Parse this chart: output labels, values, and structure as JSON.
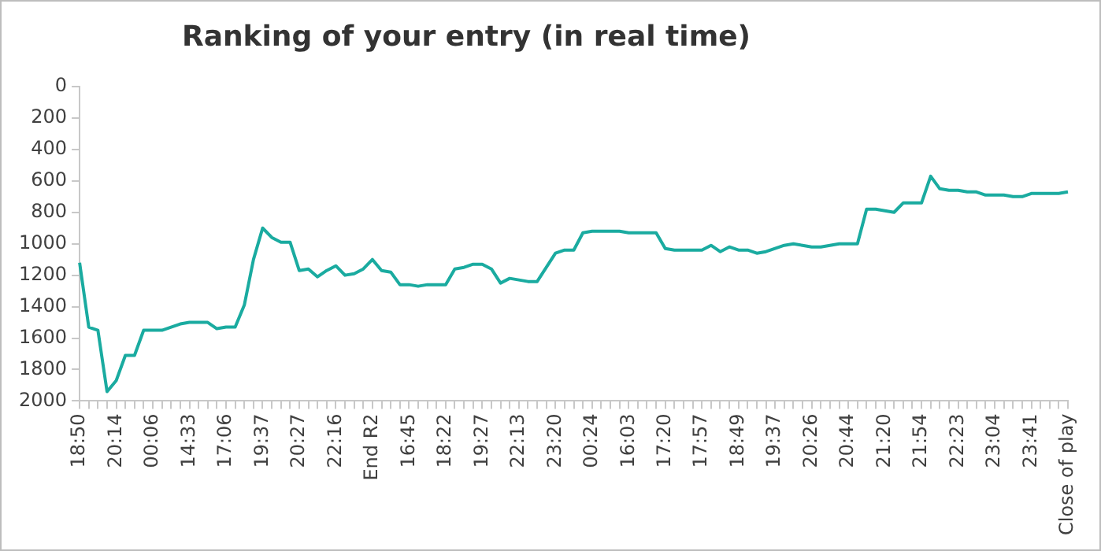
{
  "chart_data": {
    "type": "line",
    "title": "Ranking of your entry (in real time)",
    "categories": [
      "18:50",
      null,
      null,
      null,
      "20:14",
      null,
      null,
      null,
      "00:06",
      null,
      null,
      null,
      "14:33",
      null,
      null,
      null,
      "17:06",
      null,
      null,
      null,
      "19:37",
      null,
      null,
      null,
      "20:27",
      null,
      null,
      null,
      "22:16",
      null,
      null,
      null,
      "End R2",
      null,
      null,
      null,
      "16:45",
      null,
      null,
      null,
      "18:22",
      null,
      null,
      null,
      "19:27",
      null,
      null,
      null,
      "22:13",
      null,
      null,
      null,
      "23:20",
      null,
      null,
      null,
      "00:24",
      null,
      null,
      null,
      "16:03",
      null,
      null,
      null,
      "17:20",
      null,
      null,
      null,
      "17:57",
      null,
      null,
      null,
      "18:49",
      null,
      null,
      null,
      "19:37",
      null,
      null,
      null,
      "20:26",
      null,
      null,
      null,
      "20:44",
      null,
      null,
      null,
      "21:20",
      null,
      null,
      null,
      "21:54",
      null,
      null,
      null,
      "22:23",
      null,
      null,
      null,
      "23:04",
      null,
      null,
      null,
      "23:41",
      null,
      null,
      null,
      "Close of play"
    ],
    "series": [
      {
        "color": "#1aaba0",
        "values": [
          1120,
          1530,
          1550,
          1940,
          1870,
          1710,
          1710,
          1550,
          1550,
          1550,
          1530,
          1510,
          1500,
          1500,
          1500,
          1540,
          1530,
          1530,
          1390,
          1100,
          900,
          960,
          990,
          990,
          1170,
          1160,
          1210,
          1170,
          1140,
          1200,
          1190,
          1160,
          1100,
          1170,
          1180,
          1260,
          1260,
          1270,
          1260,
          1260,
          1260,
          1160,
          1150,
          1130,
          1130,
          1160,
          1250,
          1220,
          1230,
          1240,
          1240,
          1150,
          1060,
          1040,
          1040,
          930,
          920,
          920,
          920,
          920,
          930,
          930,
          930,
          930,
          1030,
          1040,
          1040,
          1040,
          1040,
          1010,
          1050,
          1020,
          1040,
          1040,
          1060,
          1050,
          1030,
          1010,
          1000,
          1010,
          1020,
          1020,
          1010,
          1000,
          1000,
          1000,
          780,
          780,
          790,
          800,
          740,
          740,
          740,
          570,
          650,
          660,
          660,
          670,
          670,
          690,
          690,
          690,
          700,
          700,
          680,
          680,
          680,
          680,
          670
        ]
      }
    ],
    "ylim": [
      2000,
      0
    ],
    "yticks": [
      0,
      200,
      400,
      600,
      800,
      1000,
      1200,
      1400,
      1600,
      1800,
      2000
    ],
    "grid": false,
    "legend": false,
    "marker": "none",
    "line_style": "solid"
  }
}
